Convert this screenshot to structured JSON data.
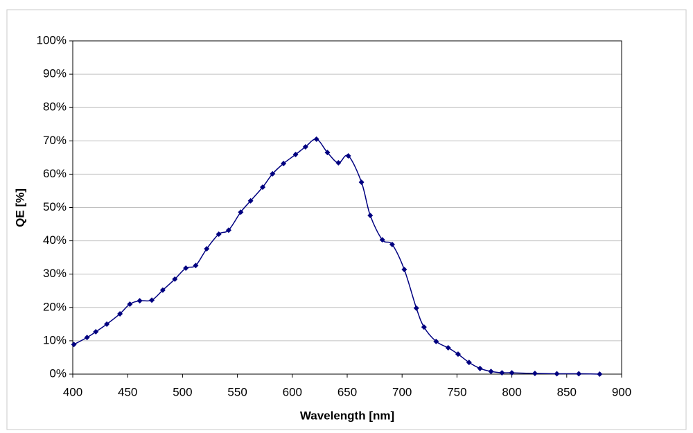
{
  "chart_data": {
    "type": "line",
    "x_label": "Wavelength [nm]",
    "y_label": "QE [%]",
    "series": [
      {
        "name": "QE",
        "color": "#000080",
        "x": [
          401,
          413,
          421,
          431,
          443,
          452,
          461,
          472,
          482,
          493,
          503,
          512,
          522,
          533,
          542,
          553,
          562,
          573,
          582,
          592,
          603,
          612,
          622,
          632,
          642,
          651,
          663,
          671,
          682,
          691,
          702,
          713,
          720,
          731,
          742,
          751,
          761,
          771,
          781,
          791,
          800,
          821,
          841,
          861,
          880
        ],
        "values": [
          8.9,
          11.0,
          12.7,
          15.0,
          18.1,
          21.0,
          22.0,
          22.2,
          25.2,
          28.5,
          31.8,
          32.6,
          37.6,
          42.0,
          43.2,
          48.6,
          52.0,
          56.1,
          60.1,
          63.2,
          65.9,
          68.2,
          70.5,
          66.5,
          63.4,
          65.5,
          57.6,
          47.6,
          40.3,
          38.9,
          31.4,
          19.8,
          14.1,
          9.8,
          7.9,
          6.0,
          3.5,
          1.7,
          0.8,
          0.4,
          0.4,
          0.2,
          0.1,
          0.1,
          0.0
        ]
      }
    ],
    "xlim": [
      400,
      900
    ],
    "xticks": [
      400,
      450,
      500,
      550,
      600,
      650,
      700,
      750,
      800,
      850,
      900
    ],
    "ylim": [
      0,
      100
    ],
    "yticks": [
      {
        "value": 0,
        "label": "0%"
      },
      {
        "value": 10,
        "label": "10%"
      },
      {
        "value": 20,
        "label": "20%"
      },
      {
        "value": 30,
        "label": "30%"
      },
      {
        "value": 40,
        "label": "40%"
      },
      {
        "value": 50,
        "label": "50%"
      },
      {
        "value": 60,
        "label": "60%"
      },
      {
        "value": 70,
        "label": "70%"
      },
      {
        "value": 80,
        "label": "80%"
      },
      {
        "value": 90,
        "label": "90%"
      },
      {
        "value": 100,
        "label": "100%"
      }
    ],
    "grid": true,
    "smooth": true
  }
}
